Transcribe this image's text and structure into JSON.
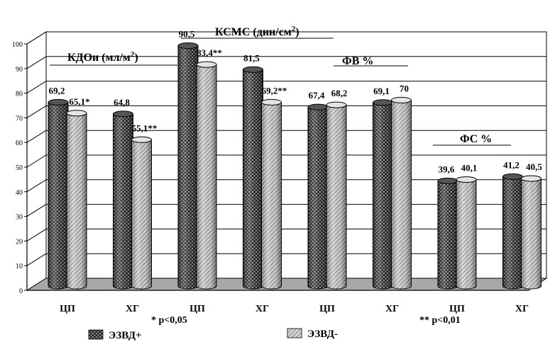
{
  "chart_data": {
    "type": "bar",
    "style": "3d-cylinder",
    "ylim": [
      0,
      100
    ],
    "yticks": [
      "0",
      "10",
      "20",
      "30",
      "40",
      "50",
      "60",
      "70",
      "80",
      "90",
      "100"
    ],
    "grid": true,
    "legend_placement": "bottom",
    "categories": [
      "ЦП",
      "ХГ",
      "ЦП",
      "ХГ",
      "ЦП",
      "ХГ",
      "ЦП",
      "ХГ"
    ],
    "series": [
      {
        "name": "ЭЗВД+",
        "values": [
          69.2,
          64.8,
          90.5,
          81.5,
          67.4,
          69.1,
          39.6,
          41.2
        ],
        "labels": [
          "69,2",
          "64,8",
          "90,5",
          "81,5",
          "67,4",
          "69,1",
          "39,6",
          "41,2"
        ],
        "color": "#1a1a1a"
      },
      {
        "name": "ЭЗВД-",
        "values": [
          65.1,
          55.1,
          83.4,
          69.2,
          68.2,
          70,
          40.1,
          40.5
        ],
        "labels": [
          "65,1*",
          "55,1**",
          "83,4**",
          "69,2**",
          "68,2",
          "70",
          "40,1",
          "40,5"
        ],
        "color": "#bdbdbd"
      }
    ],
    "annotations": {
      "group_titles": [
        {
          "base": "КДОи (мл/м",
          "sup": "2",
          "end": ")"
        },
        {
          "base": "КСМС (дин/см",
          "sup": "2",
          "end": ")"
        },
        {
          "base": "ФВ %",
          "sup": "",
          "end": ""
        },
        {
          "base": "ФС %",
          "sup": "",
          "end": ""
        }
      ],
      "significance": [
        "* p<0,05",
        "** p<0,01"
      ]
    }
  }
}
